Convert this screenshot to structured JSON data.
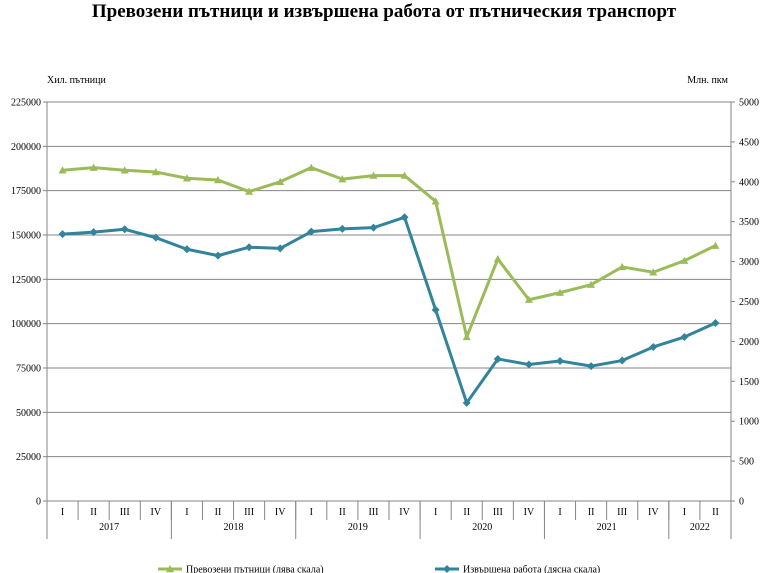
{
  "chart_data": {
    "type": "line",
    "title": "Превозени пътници и извършена работа от пътническия транспорт",
    "y_left_label": "Хил. пътници",
    "y_right_label": "Млн. пкм",
    "y_left_range": [
      0,
      225000
    ],
    "y_left_ticks": [
      "0",
      "25000",
      "50000",
      "75000",
      "100000",
      "125000",
      "150000",
      "175000",
      "200000",
      "225000"
    ],
    "y_right_range": [
      0,
      5000
    ],
    "y_right_ticks": [
      "0",
      "500",
      "1000",
      "1500",
      "2000",
      "2500",
      "3000",
      "3500",
      "4000",
      "4500",
      "5000"
    ],
    "quarters": [
      "I",
      "II",
      "III",
      "IV",
      "I",
      "II",
      "III",
      "IV",
      "I",
      "II",
      "III",
      "IV",
      "I",
      "II",
      "III",
      "IV",
      "I",
      "II",
      "III",
      "IV",
      "I",
      "II"
    ],
    "years": [
      {
        "label": "2017",
        "start": 0,
        "count": 4
      },
      {
        "label": "2018",
        "start": 4,
        "count": 4
      },
      {
        "label": "2019",
        "start": 8,
        "count": 4
      },
      {
        "label": "2020",
        "start": 12,
        "count": 4
      },
      {
        "label": "2021",
        "start": 16,
        "count": 4
      },
      {
        "label": "2022",
        "start": 20,
        "count": 2
      }
    ],
    "grid": "horizontal",
    "legend_position": "bottom",
    "series": [
      {
        "name": "Превозени пътници (лява скала)",
        "axis": "left",
        "color": "#9bbb59",
        "marker": "triangle",
        "values": [
          186500,
          188000,
          186500,
          185500,
          182000,
          181000,
          174500,
          180000,
          188000,
          181500,
          183500,
          183500,
          169000,
          92500,
          136500,
          113500,
          117500,
          122000,
          132000,
          129000,
          135500,
          144000
        ]
      },
      {
        "name": "Извършена работа (дясна скала)",
        "axis": "right",
        "color": "#31849b",
        "marker": "diamond",
        "values": [
          3345,
          3370,
          3405,
          3300,
          3155,
          3075,
          3180,
          3165,
          3375,
          3410,
          3425,
          3555,
          2395,
          1230,
          1780,
          1710,
          1755,
          1690,
          1760,
          1930,
          2055,
          2230
        ]
      }
    ]
  }
}
